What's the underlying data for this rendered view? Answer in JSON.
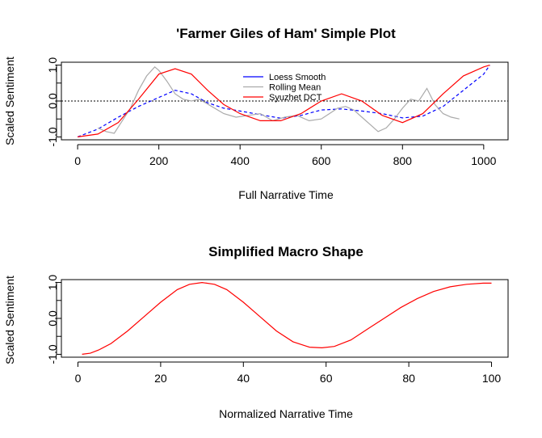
{
  "colors": {
    "loess": "#0000ff",
    "rolling": "#aaaaaa",
    "dct": "#ff0000",
    "axis": "#000000"
  },
  "chart_data": [
    {
      "type": "line",
      "title": "'Farmer Giles of Ham' Simple Plot",
      "xlabel": "Full Narrative Time",
      "ylabel": "Scaled Sentiment",
      "xlim": [
        -40,
        1060
      ],
      "ylim": [
        -1.08,
        1.08
      ],
      "xticks": [
        0,
        200,
        400,
        600,
        800,
        1000
      ],
      "xtick_labels": [
        "0",
        "200",
        "400",
        "600",
        "800",
        "1000"
      ],
      "yticks": [
        -1,
        0,
        1
      ],
      "ytick_labels": [
        "-1.0",
        "0.0",
        "1.0"
      ],
      "reference_line": 0,
      "legend_position": "top-center",
      "series": [
        {
          "name": "Loess Smooth",
          "style": "dashed",
          "x": [
            0,
            50,
            100,
            150,
            200,
            240,
            280,
            320,
            360,
            400,
            450,
            500,
            550,
            600,
            650,
            700,
            750,
            800,
            850,
            900,
            950,
            1000,
            1015
          ],
          "y": [
            -1.0,
            -0.78,
            -0.45,
            -0.15,
            0.1,
            0.3,
            0.2,
            -0.05,
            -0.2,
            -0.28,
            -0.38,
            -0.48,
            -0.4,
            -0.25,
            -0.22,
            -0.28,
            -0.35,
            -0.47,
            -0.42,
            -0.15,
            0.3,
            0.75,
            1.0
          ]
        },
        {
          "name": "Rolling Mean",
          "style": "solid",
          "x": [
            50,
            70,
            90,
            110,
            130,
            150,
            170,
            190,
            200,
            220,
            240,
            260,
            280,
            300,
            330,
            360,
            390,
            420,
            450,
            480,
            510,
            540,
            570,
            600,
            620,
            640,
            660,
            680,
            700,
            720,
            740,
            760,
            780,
            800,
            820,
            840,
            860,
            880,
            900,
            920,
            940
          ],
          "y": [
            -0.75,
            -0.85,
            -0.9,
            -0.55,
            -0.2,
            0.3,
            0.7,
            0.95,
            0.85,
            0.55,
            0.2,
            0.05,
            0.0,
            0.05,
            -0.15,
            -0.35,
            -0.45,
            -0.4,
            -0.35,
            -0.55,
            -0.45,
            -0.4,
            -0.55,
            -0.5,
            -0.35,
            -0.2,
            -0.15,
            -0.25,
            -0.45,
            -0.65,
            -0.85,
            -0.75,
            -0.5,
            -0.2,
            0.05,
            0.0,
            0.35,
            -0.1,
            -0.35,
            -0.45,
            -0.5
          ]
        },
        {
          "name": "Syuzhet DCT",
          "style": "solid",
          "x": [
            0,
            50,
            100,
            150,
            200,
            240,
            280,
            320,
            360,
            400,
            450,
            500,
            550,
            600,
            650,
            700,
            750,
            800,
            850,
            900,
            950,
            1000,
            1015
          ],
          "y": [
            -1.0,
            -0.92,
            -0.6,
            0.05,
            0.75,
            0.9,
            0.75,
            0.3,
            -0.1,
            -0.35,
            -0.55,
            -0.55,
            -0.35,
            -0.0,
            0.2,
            0.0,
            -0.4,
            -0.6,
            -0.35,
            0.2,
            0.7,
            0.95,
            1.0
          ]
        }
      ]
    },
    {
      "type": "line",
      "title": "Simplified Macro Shape",
      "xlabel": "Normalized Narrative Time",
      "ylabel": "Scaled Sentiment",
      "xlim": [
        -4,
        104
      ],
      "ylim": [
        -1.08,
        1.08
      ],
      "xticks": [
        0,
        20,
        40,
        60,
        80,
        100
      ],
      "xtick_labels": [
        "0",
        "20",
        "40",
        "60",
        "80",
        "100"
      ],
      "yticks": [
        -1,
        0,
        1
      ],
      "ytick_labels": [
        "-1.0",
        "0.0",
        "1.0"
      ],
      "series": [
        {
          "style": "solid",
          "x": [
            1,
            3,
            5,
            8,
            12,
            16,
            20,
            24,
            27,
            30,
            33,
            36,
            40,
            44,
            48,
            52,
            56,
            59,
            62,
            66,
            70,
            74,
            78,
            82,
            86,
            90,
            94,
            98,
            100
          ],
          "y": [
            -1.0,
            -0.97,
            -0.88,
            -0.7,
            -0.35,
            0.05,
            0.45,
            0.8,
            0.95,
            1.0,
            0.95,
            0.8,
            0.45,
            0.05,
            -0.35,
            -0.65,
            -0.8,
            -0.82,
            -0.78,
            -0.6,
            -0.3,
            0.0,
            0.3,
            0.55,
            0.75,
            0.88,
            0.95,
            0.98,
            0.98
          ]
        }
      ]
    }
  ]
}
